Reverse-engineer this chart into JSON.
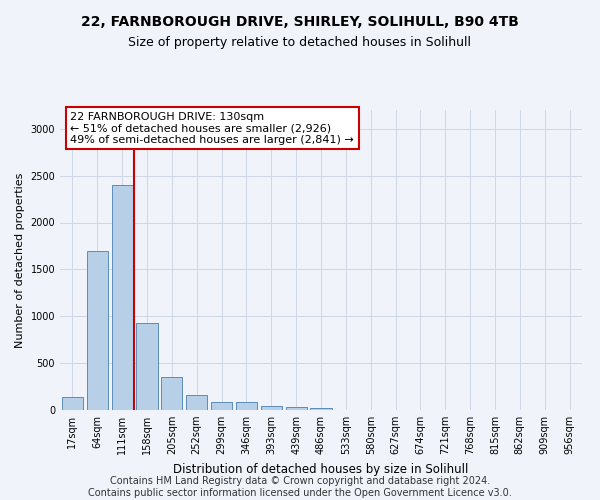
{
  "title_line1": "22, FARNBOROUGH DRIVE, SHIRLEY, SOLIHULL, B90 4TB",
  "title_line2": "Size of property relative to detached houses in Solihull",
  "xlabel": "Distribution of detached houses by size in Solihull",
  "ylabel": "Number of detached properties",
  "bar_color": "#b8cfe8",
  "bar_edge_color": "#5b8db8",
  "categories": [
    "17sqm",
    "64sqm",
    "111sqm",
    "158sqm",
    "205sqm",
    "252sqm",
    "299sqm",
    "346sqm",
    "393sqm",
    "439sqm",
    "486sqm",
    "533sqm",
    "580sqm",
    "627sqm",
    "674sqm",
    "721sqm",
    "768sqm",
    "815sqm",
    "862sqm",
    "909sqm",
    "956sqm"
  ],
  "values": [
    140,
    1700,
    2400,
    930,
    350,
    160,
    90,
    90,
    45,
    30,
    20,
    5,
    5,
    0,
    0,
    0,
    0,
    0,
    0,
    0,
    0
  ],
  "ylim": [
    0,
    3200
  ],
  "yticks": [
    0,
    500,
    1000,
    1500,
    2000,
    2500,
    3000
  ],
  "vline_x_index": 2,
  "vline_x_offset": 0.47,
  "annotation_text": "22 FARNBOROUGH DRIVE: 130sqm\n← 51% of detached houses are smaller (2,926)\n49% of semi-detached houses are larger (2,841) →",
  "annotation_box_color": "#ffffff",
  "annotation_box_edge_color": "#cc0000",
  "vline_color": "#cc0000",
  "footer_line1": "Contains HM Land Registry data © Crown copyright and database right 2024.",
  "footer_line2": "Contains public sector information licensed under the Open Government Licence v3.0.",
  "bg_color": "#f0f4fa",
  "plot_bg_color": "#f0f4fa",
  "grid_color": "#d0d8e8",
  "title_fontsize": 10,
  "subtitle_fontsize": 9,
  "tick_fontsize": 7,
  "ylabel_fontsize": 8,
  "xlabel_fontsize": 8.5,
  "annotation_fontsize": 8,
  "footer_fontsize": 7
}
